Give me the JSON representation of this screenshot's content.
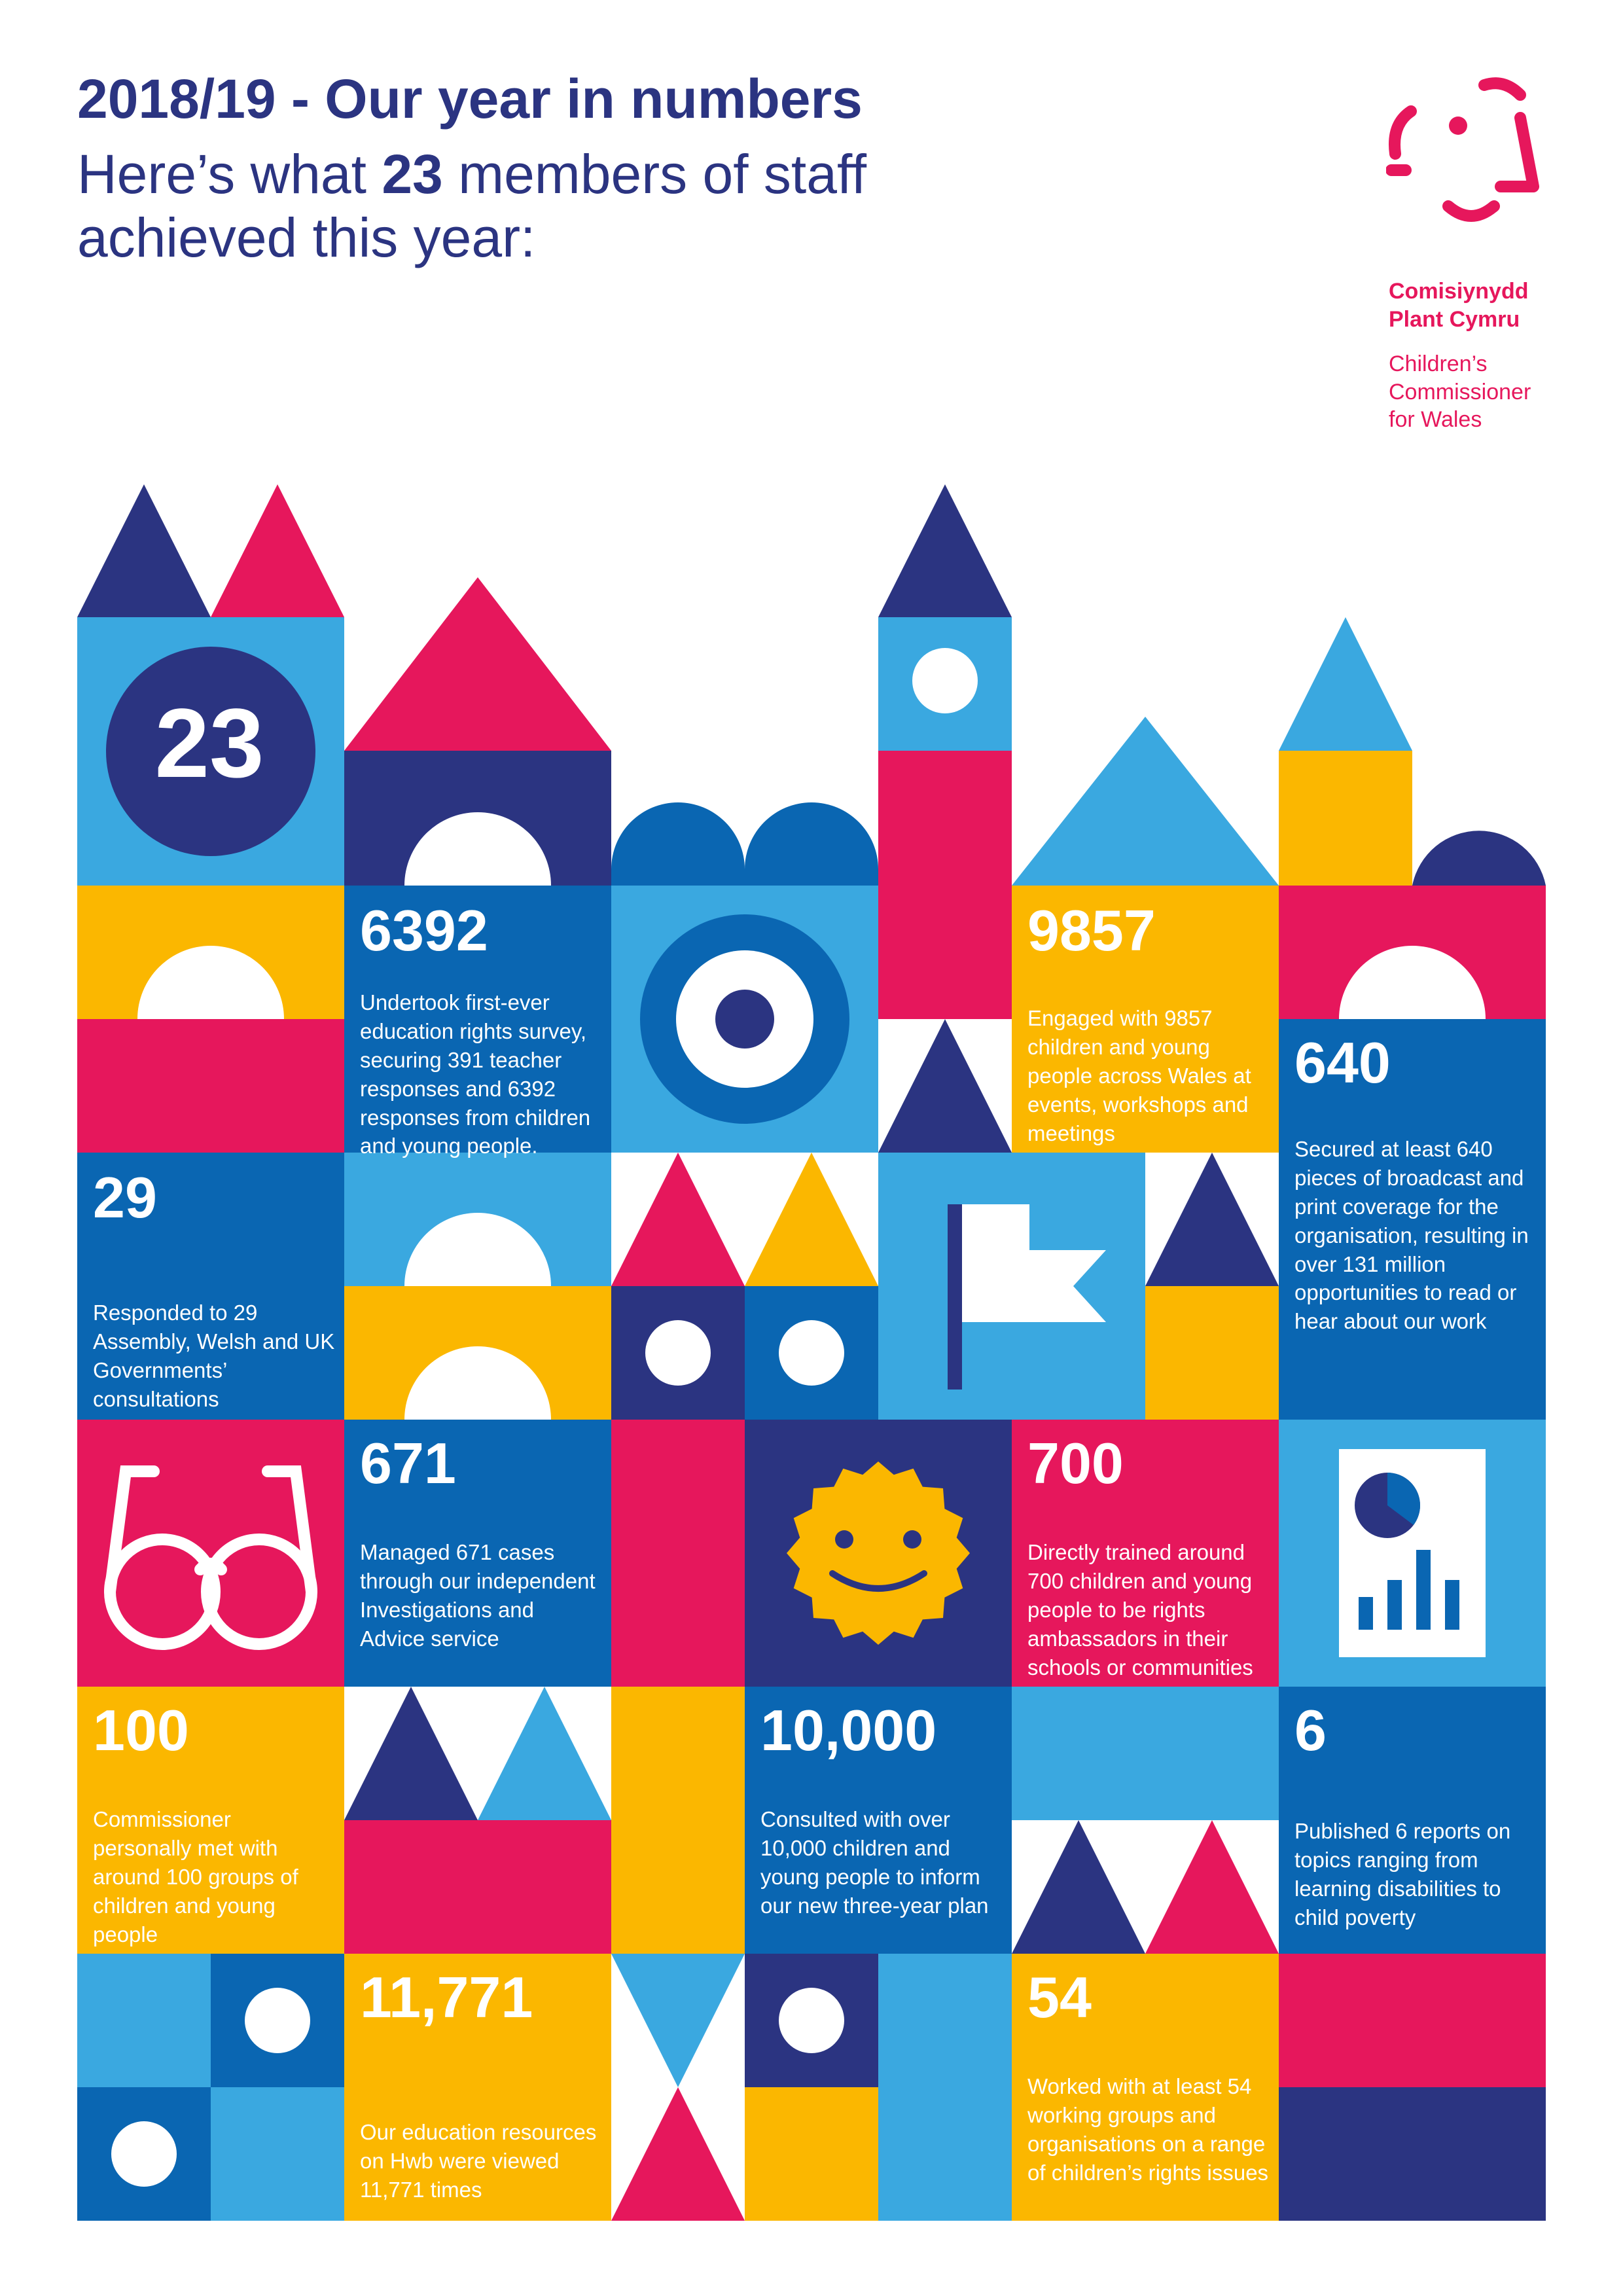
{
  "header": {
    "title": "2018/19 - Our year in numbers",
    "subtitle_pre": "Here’s what ",
    "subtitle_num": "23",
    "subtitle_post": " members of staff achieved this year:"
  },
  "logo": {
    "line1": "Comisiynydd",
    "line2": "Plant Cymru",
    "line3": "Children’s",
    "line4": "Commissioner",
    "line5": "for Wales",
    "icon": "face-logo-icon"
  },
  "colors": {
    "navy": "#2b3481",
    "pink": "#e6175c",
    "yellow": "#fbb700",
    "light_blue": "#3aa8e0",
    "mid_blue": "#0a66b2"
  },
  "staff_count": "23",
  "stats": {
    "s6392": {
      "num": "6392",
      "desc": "Undertook first-ever education rights survey, securing 391 teacher responses and 6392 responses from children and young people."
    },
    "s9857": {
      "num": "9857",
      "desc": "Engaged with 9857 children and young people across Wales at events, workshops and meetings"
    },
    "s640": {
      "num": "640",
      "desc": "Secured at least 640 pieces of broadcast and print coverage for the organisation, resulting in over 131 million opportunities to read or hear about our work"
    },
    "s29": {
      "num": "29",
      "desc": "Responded to 29 Assembly, Welsh and UK Governments’ consultations"
    },
    "s671": {
      "num": "671",
      "desc": "Managed 671 cases through our independent Investigations and Advice service"
    },
    "s700": {
      "num": "700",
      "desc": "Directly trained around 700 children and young people to be rights ambassadors in their schools or communities"
    },
    "s100": {
      "num": "100",
      "desc": "Commissioner personally met with around 100 groups of children and young people"
    },
    "s10000": {
      "num": "10,000",
      "desc": "Consulted with over 10,000 children and young people to inform our new three-year plan"
    },
    "s6": {
      "num": "6",
      "desc": "Published 6 reports on topics ranging from learning disabilities to child poverty"
    },
    "s11771": {
      "num": "11,771",
      "desc": "Our education resources on Hwb were viewed 11,771 times"
    },
    "s54": {
      "num": "54",
      "desc": "Worked with at least 54 working groups and organisations on a range of children’s rights issues"
    }
  },
  "icons": [
    "glasses-icon",
    "flag-icon",
    "smiley-sun-icon",
    "report-chart-icon",
    "target-icon"
  ]
}
